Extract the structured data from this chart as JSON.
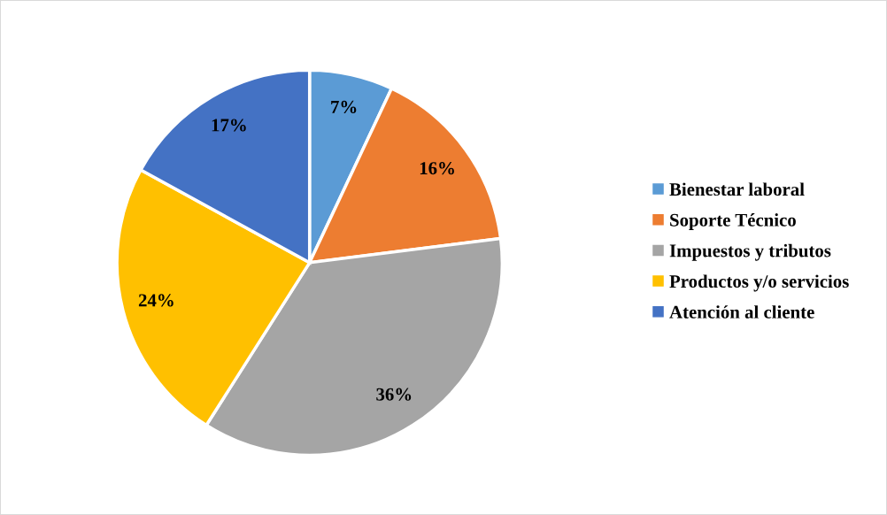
{
  "chart_data": {
    "type": "pie",
    "categories": [
      "Bienestar laboral",
      "Soporte Técnico",
      "Impuestos y tributos",
      "Productos y/o servicios",
      "Atención al cliente"
    ],
    "values": [
      7,
      16,
      36,
      24,
      17
    ],
    "colors": [
      "#5b9bd5",
      "#ed7d31",
      "#a5a5a5",
      "#ffc000",
      "#4472c4"
    ],
    "value_labels": [
      "7%",
      "16%",
      "36%",
      "24%",
      "17%"
    ],
    "legend": "right"
  }
}
